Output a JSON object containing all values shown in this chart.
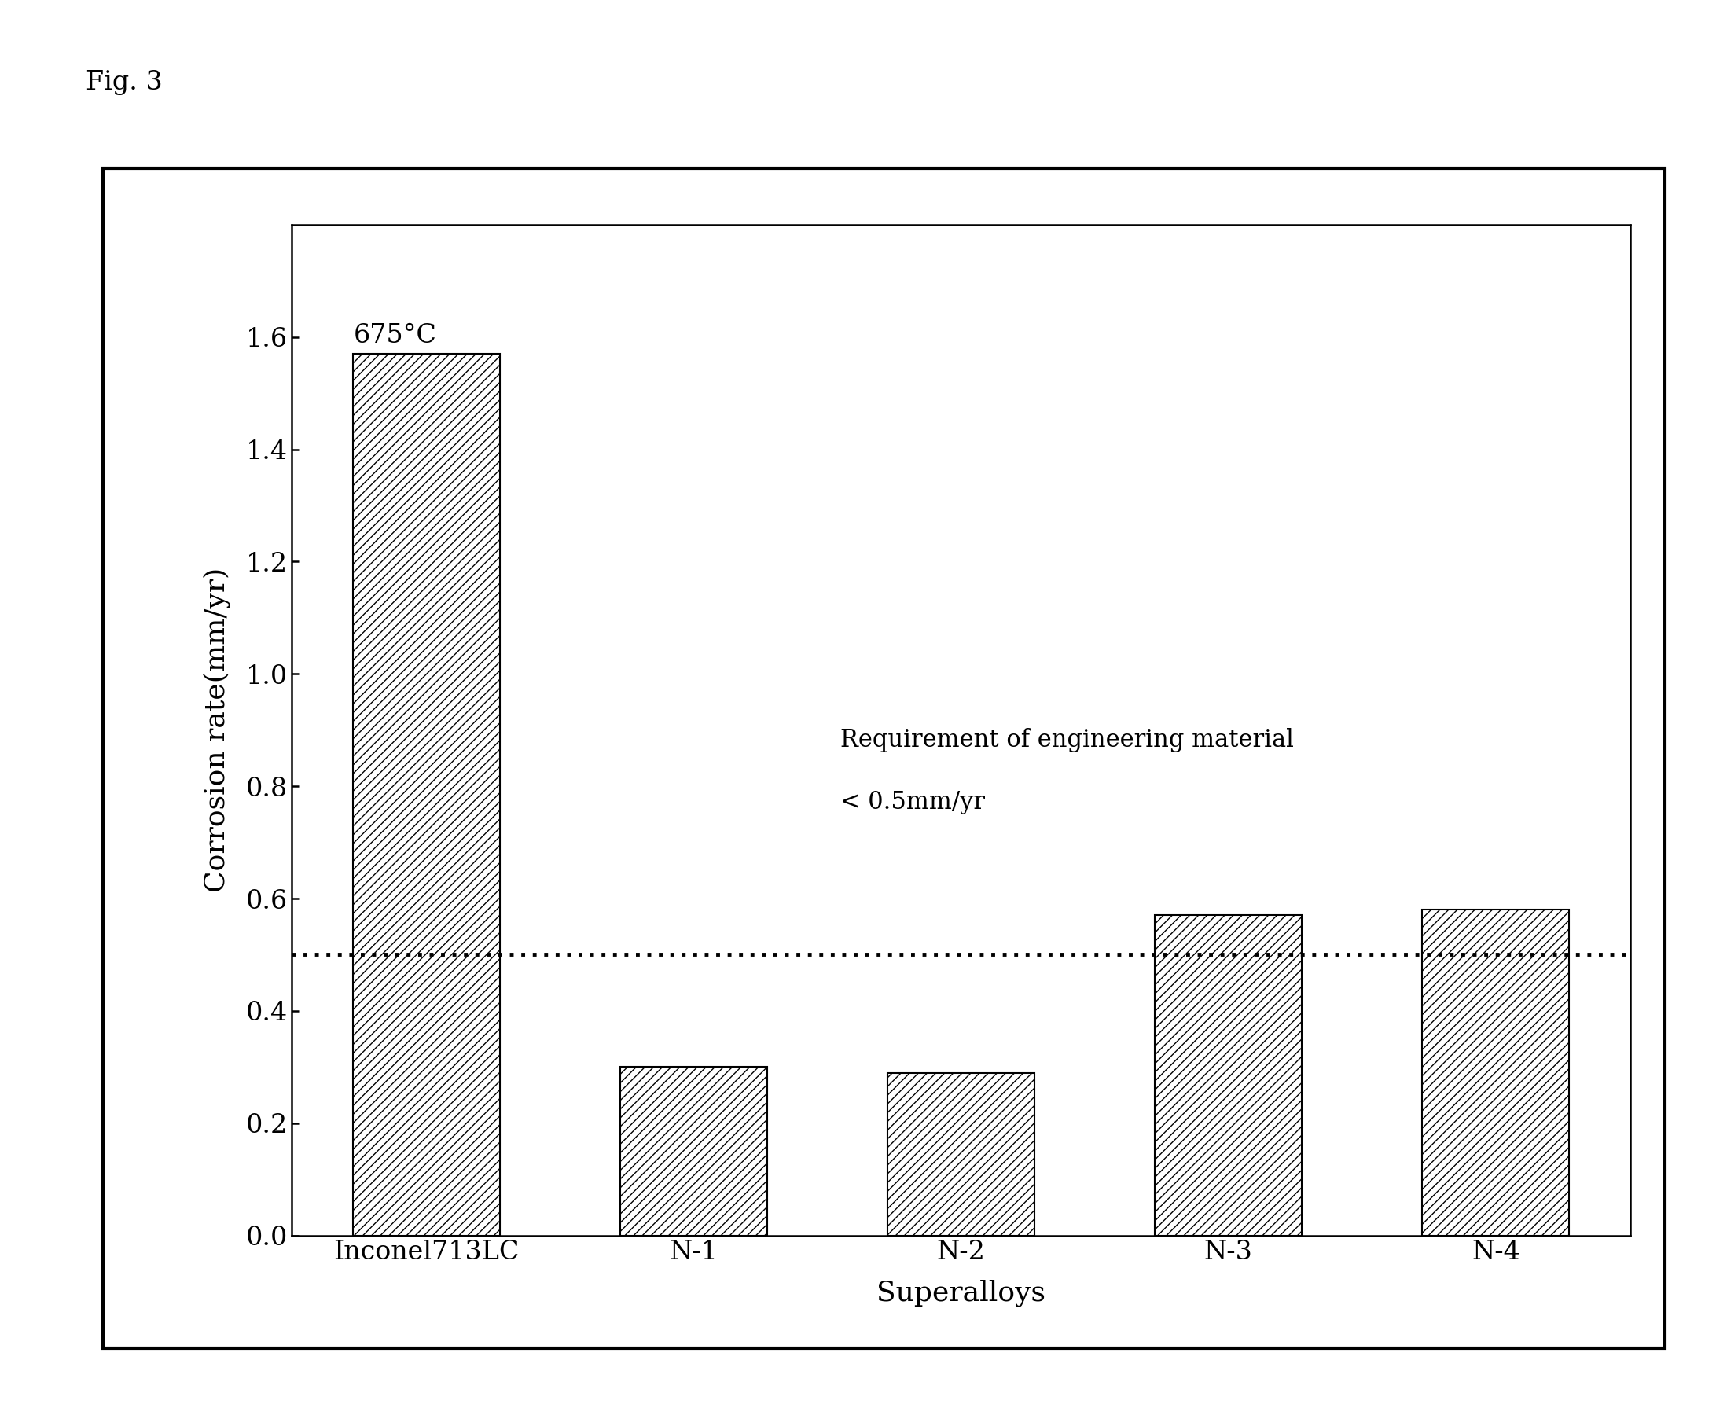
{
  "categories": [
    "Inconel713LC",
    "N-1",
    "N-2",
    "N-3",
    "N-4"
  ],
  "values": [
    1.57,
    0.3,
    0.29,
    0.57,
    0.58
  ],
  "xlabel": "Superalloys",
  "ylabel": "Corrosion rate(mm/yr)",
  "ylim": [
    0,
    1.8
  ],
  "yticks": [
    0.0,
    0.2,
    0.4,
    0.6,
    0.8,
    1.0,
    1.2,
    1.4,
    1.6
  ],
  "hline_y": 0.5,
  "hline_label_line1": "Requirement of engineering material",
  "hline_label_line2": "< 0.5mm/yr",
  "annotation_text": "675°C",
  "fig_label": "Fig. 3",
  "hatch_pattern": "///",
  "bar_color": "white",
  "bar_edgecolor": "black",
  "background_color": "white",
  "label_fontsize": 26,
  "tick_fontsize": 24,
  "annotation_fontsize": 24,
  "hline_fontsize": 22,
  "fig_label_fontsize": 24
}
